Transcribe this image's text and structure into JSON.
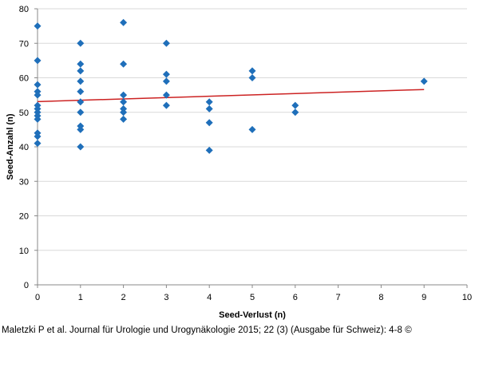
{
  "chart_data": {
    "type": "scatter",
    "xlabel": "Seed-Verlust (n)",
    "ylabel": "Seed-Anzahl (n)",
    "xlim": [
      0,
      10
    ],
    "ylim": [
      0,
      80
    ],
    "x_ticks": [
      0,
      1,
      2,
      3,
      4,
      5,
      6,
      7,
      8,
      9,
      10
    ],
    "y_ticks": [
      0,
      10,
      20,
      30,
      40,
      50,
      60,
      70,
      80
    ],
    "grid": {
      "horizontal": true,
      "vertical": false
    },
    "legend": "none",
    "marker_color": "#1f6fba",
    "trendline_color": "#cc2222",
    "grid_color": "#d9d9d9",
    "points": [
      {
        "x": 0,
        "y": 75
      },
      {
        "x": 0,
        "y": 65
      },
      {
        "x": 0,
        "y": 58
      },
      {
        "x": 0,
        "y": 56
      },
      {
        "x": 0,
        "y": 55
      },
      {
        "x": 0,
        "y": 52
      },
      {
        "x": 0,
        "y": 51
      },
      {
        "x": 0,
        "y": 50
      },
      {
        "x": 0,
        "y": 49
      },
      {
        "x": 0,
        "y": 48
      },
      {
        "x": 0,
        "y": 44
      },
      {
        "x": 0,
        "y": 43
      },
      {
        "x": 0,
        "y": 41
      },
      {
        "x": 1,
        "y": 70
      },
      {
        "x": 1,
        "y": 64
      },
      {
        "x": 1,
        "y": 62
      },
      {
        "x": 1,
        "y": 59
      },
      {
        "x": 1,
        "y": 56
      },
      {
        "x": 1,
        "y": 53
      },
      {
        "x": 1,
        "y": 50
      },
      {
        "x": 1,
        "y": 46
      },
      {
        "x": 1,
        "y": 45
      },
      {
        "x": 1,
        "y": 40
      },
      {
        "x": 2,
        "y": 76
      },
      {
        "x": 2,
        "y": 64
      },
      {
        "x": 2,
        "y": 55
      },
      {
        "x": 2,
        "y": 53
      },
      {
        "x": 2,
        "y": 51
      },
      {
        "x": 2,
        "y": 50
      },
      {
        "x": 2,
        "y": 48
      },
      {
        "x": 3,
        "y": 70
      },
      {
        "x": 3,
        "y": 61
      },
      {
        "x": 3,
        "y": 59
      },
      {
        "x": 3,
        "y": 55
      },
      {
        "x": 3,
        "y": 52
      },
      {
        "x": 4,
        "y": 53
      },
      {
        "x": 4,
        "y": 51
      },
      {
        "x": 4,
        "y": 47
      },
      {
        "x": 4,
        "y": 39
      },
      {
        "x": 5,
        "y": 62
      },
      {
        "x": 5,
        "y": 60
      },
      {
        "x": 5,
        "y": 45
      },
      {
        "x": 6,
        "y": 52
      },
      {
        "x": 6,
        "y": 50
      },
      {
        "x": 9,
        "y": 59
      }
    ],
    "trendline": {
      "x": [
        0,
        9
      ],
      "y": [
        53.1,
        56.6
      ]
    }
  },
  "caption": "Maletzki P et al. Journal für Urologie und Urogynäkologie 2015; 22 (3) (Ausgabe für Schweiz): 4-8 ©"
}
